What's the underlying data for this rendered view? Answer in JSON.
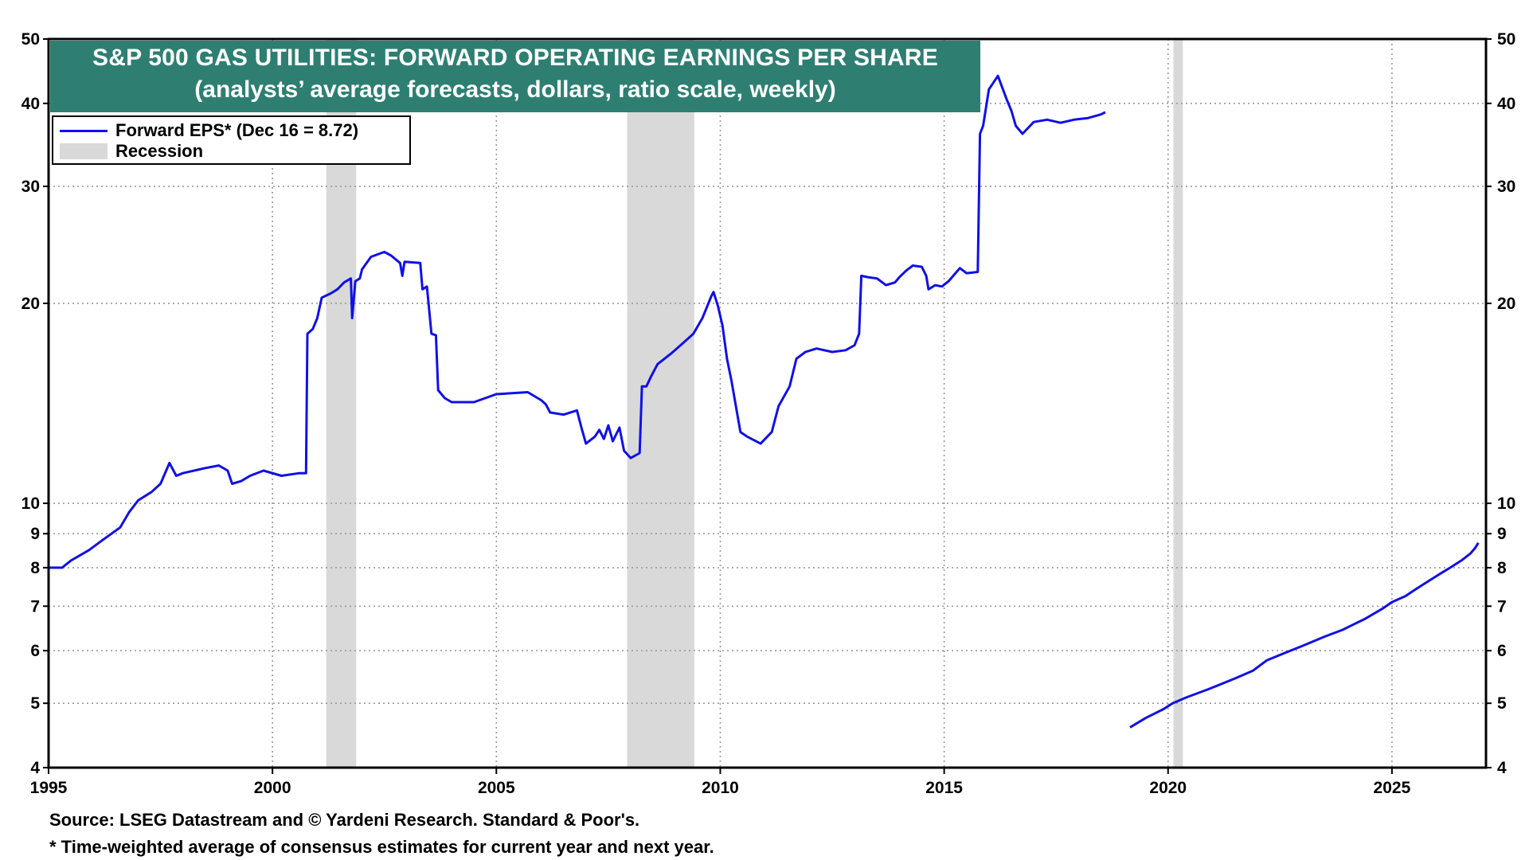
{
  "chart_data": {
    "type": "line",
    "title": "S&P 500 GAS UTILITIES: FORWARD OPERATING EARNINGS PER SHARE",
    "subtitle": "(analysts’ average forecasts, dollars, ratio scale, weekly)",
    "y_scale": "log",
    "ylim": [
      4,
      50
    ],
    "xlim": [
      1995,
      2027.1
    ],
    "y_ticks": [
      4,
      5,
      6,
      7,
      8,
      9,
      10,
      20,
      30,
      40,
      50
    ],
    "x_ticks": [
      1995,
      2000,
      2005,
      2010,
      2015,
      2020,
      2025
    ],
    "grid": true,
    "legend": {
      "placement": "top-left",
      "entries": [
        {
          "label": "Forward EPS* (Dec 16 = 8.72)",
          "kind": "line",
          "color": "#1010e8"
        },
        {
          "label": "Recession",
          "kind": "band",
          "color": "#d9d9d9"
        }
      ]
    },
    "recessions": [
      {
        "start": 2001.2,
        "end": 2001.87
      },
      {
        "start": 2007.92,
        "end": 2009.42
      },
      {
        "start": 2020.12,
        "end": 2020.33
      }
    ],
    "series": [
      {
        "name": "Forward EPS*",
        "color": "#1010e8",
        "segments": [
          [
            [
              1995.0,
              8.0
            ],
            [
              1995.3,
              8.0
            ],
            [
              1995.5,
              8.2
            ],
            [
              1995.9,
              8.5
            ],
            [
              1996.2,
              8.8
            ],
            [
              1996.6,
              9.2
            ],
            [
              1996.8,
              9.7
            ],
            [
              1997.0,
              10.1
            ],
            [
              1997.3,
              10.4
            ],
            [
              1997.5,
              10.7
            ],
            [
              1997.7,
              11.5
            ],
            [
              1997.85,
              11.0
            ],
            [
              1998.0,
              11.1
            ],
            [
              1998.5,
              11.3
            ],
            [
              1998.8,
              11.4
            ],
            [
              1999.0,
              11.2
            ],
            [
              1999.1,
              10.7
            ],
            [
              1999.3,
              10.8
            ],
            [
              1999.5,
              11.0
            ],
            [
              1999.8,
              11.2
            ],
            [
              2000.2,
              11.0
            ],
            [
              2000.6,
              11.1
            ],
            [
              2000.75,
              11.1
            ],
            [
              2000.78,
              18.0
            ],
            [
              2000.9,
              18.3
            ],
            [
              2001.0,
              19.0
            ],
            [
              2001.1,
              20.4
            ],
            [
              2001.3,
              20.7
            ],
            [
              2001.45,
              21.0
            ],
            [
              2001.6,
              21.5
            ],
            [
              2001.75,
              21.8
            ],
            [
              2001.78,
              19.0
            ],
            [
              2001.85,
              21.6
            ],
            [
              2001.95,
              21.8
            ],
            [
              2002.0,
              22.5
            ],
            [
              2002.2,
              23.5
            ],
            [
              2002.5,
              23.9
            ],
            [
              2002.65,
              23.6
            ],
            [
              2002.85,
              23.0
            ],
            [
              2002.9,
              22.0
            ],
            [
              2002.95,
              23.1
            ],
            [
              2003.3,
              23.0
            ],
            [
              2003.35,
              21.0
            ],
            [
              2003.45,
              21.2
            ],
            [
              2003.55,
              18.0
            ],
            [
              2003.65,
              17.9
            ],
            [
              2003.7,
              14.8
            ],
            [
              2003.85,
              14.4
            ],
            [
              2004.0,
              14.2
            ],
            [
              2004.5,
              14.2
            ],
            [
              2005.0,
              14.6
            ],
            [
              2005.7,
              14.7
            ],
            [
              2006.0,
              14.3
            ],
            [
              2006.1,
              14.1
            ],
            [
              2006.2,
              13.7
            ],
            [
              2006.5,
              13.6
            ],
            [
              2006.8,
              13.8
            ],
            [
              2006.9,
              13.0
            ],
            [
              2007.0,
              12.3
            ],
            [
              2007.2,
              12.6
            ],
            [
              2007.3,
              12.9
            ],
            [
              2007.4,
              12.5
            ],
            [
              2007.5,
              13.1
            ],
            [
              2007.6,
              12.4
            ],
            [
              2007.75,
              13.0
            ],
            [
              2007.85,
              12.0
            ],
            [
              2008.0,
              11.7
            ],
            [
              2008.2,
              11.9
            ],
            [
              2008.25,
              15.0
            ],
            [
              2008.35,
              15.0
            ],
            [
              2008.45,
              15.5
            ],
            [
              2008.6,
              16.2
            ],
            [
              2008.9,
              16.8
            ],
            [
              2009.2,
              17.5
            ],
            [
              2009.4,
              18.0
            ],
            [
              2009.6,
              19.0
            ],
            [
              2009.8,
              20.5
            ],
            [
              2009.85,
              20.8
            ],
            [
              2009.95,
              19.8
            ],
            [
              2010.05,
              18.5
            ],
            [
              2010.15,
              16.5
            ],
            [
              2010.25,
              15.3
            ],
            [
              2010.35,
              14.0
            ],
            [
              2010.45,
              12.8
            ],
            [
              2010.6,
              12.6
            ],
            [
              2010.9,
              12.3
            ],
            [
              2011.15,
              12.8
            ],
            [
              2011.3,
              14.0
            ],
            [
              2011.55,
              15.0
            ],
            [
              2011.7,
              16.5
            ],
            [
              2011.9,
              16.9
            ],
            [
              2012.15,
              17.1
            ],
            [
              2012.5,
              16.9
            ],
            [
              2012.8,
              17.0
            ],
            [
              2013.0,
              17.3
            ],
            [
              2013.1,
              18.0
            ],
            [
              2013.15,
              22.0
            ],
            [
              2013.3,
              21.9
            ],
            [
              2013.5,
              21.8
            ],
            [
              2013.7,
              21.3
            ],
            [
              2013.9,
              21.5
            ],
            [
              2014.0,
              21.9
            ],
            [
              2014.15,
              22.4
            ],
            [
              2014.3,
              22.8
            ],
            [
              2014.5,
              22.7
            ],
            [
              2014.6,
              22.0
            ],
            [
              2014.65,
              21.0
            ],
            [
              2014.8,
              21.3
            ],
            [
              2014.95,
              21.2
            ],
            [
              2015.1,
              21.6
            ],
            [
              2015.35,
              22.6
            ],
            [
              2015.5,
              22.2
            ],
            [
              2015.75,
              22.3
            ],
            [
              2015.8,
              36.0
            ],
            [
              2015.87,
              37.0
            ],
            [
              2015.95,
              40.0
            ],
            [
              2016.0,
              42.0
            ],
            [
              2016.2,
              44.0
            ],
            [
              2016.4,
              40.5
            ],
            [
              2016.5,
              39.0
            ],
            [
              2016.6,
              37.0
            ],
            [
              2016.75,
              36.0
            ],
            [
              2017.0,
              37.5
            ],
            [
              2017.3,
              37.8
            ],
            [
              2017.6,
              37.4
            ],
            [
              2017.9,
              37.8
            ],
            [
              2018.2,
              38.0
            ],
            [
              2018.5,
              38.5
            ],
            [
              2018.6,
              38.8
            ]
          ],
          [
            [
              2019.15,
              4.6
            ],
            [
              2019.5,
              4.75
            ],
            [
              2019.9,
              4.9
            ],
            [
              2020.1,
              5.0
            ],
            [
              2020.4,
              5.1
            ],
            [
              2020.9,
              5.25
            ],
            [
              2021.5,
              5.45
            ],
            [
              2021.9,
              5.6
            ],
            [
              2022.2,
              5.8
            ],
            [
              2022.6,
              5.95
            ],
            [
              2023.0,
              6.1
            ],
            [
              2023.5,
              6.3
            ],
            [
              2023.9,
              6.45
            ],
            [
              2024.1,
              6.55
            ],
            [
              2024.4,
              6.7
            ],
            [
              2024.8,
              6.95
            ],
            [
              2025.0,
              7.1
            ],
            [
              2025.3,
              7.25
            ],
            [
              2025.5,
              7.4
            ],
            [
              2025.7,
              7.55
            ],
            [
              2025.9,
              7.7
            ],
            [
              2026.1,
              7.85
            ],
            [
              2026.3,
              8.0
            ],
            [
              2026.55,
              8.2
            ],
            [
              2026.75,
              8.4
            ],
            [
              2026.85,
              8.55
            ],
            [
              2026.93,
              8.72
            ]
          ]
        ]
      }
    ],
    "footnotes": [
      "Source: LSEG Datastream and © Yardeni Research. Standard & Poor's.",
      "* Time-weighted average of consensus estimates for current year and next year."
    ]
  },
  "colors": {
    "title_bg": "#2e7f72",
    "series": "#1010e8",
    "recession": "#d9d9d9",
    "grid": "#9a9a9a"
  }
}
